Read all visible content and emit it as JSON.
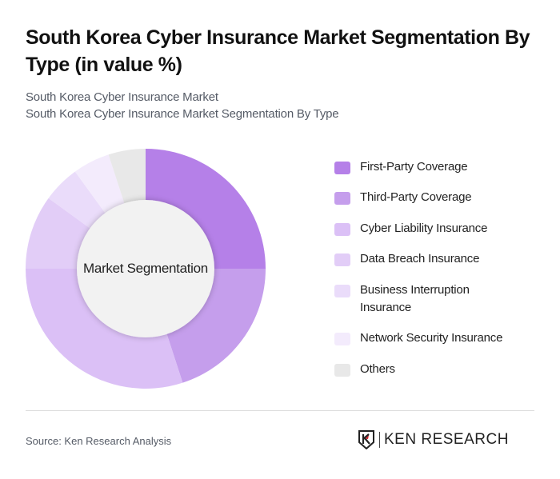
{
  "header": {
    "title": "South Korea Cyber Insurance Market Segmentation By Type (in value %)",
    "subtitle_line1": "South Korea Cyber Insurance Market",
    "subtitle_line2": "South Korea Cyber Insurance Market Segmentation By Type"
  },
  "chart": {
    "center_label": "Market Segmentation"
  },
  "legend": {
    "items": [
      {
        "label": "First-Party Coverage",
        "color": "#b580e8"
      },
      {
        "label": "Third-Party Coverage",
        "color": "#c59eec"
      },
      {
        "label": "Cyber Liability Insurance",
        "color": "#dbc0f6"
      },
      {
        "label": "Data Breach Insurance",
        "color": "#e2cdf7"
      },
      {
        "label": "Business Interruption Insurance",
        "color": "#eadcfa"
      },
      {
        "label": "Network Security Insurance",
        "color": "#f3ebfc"
      },
      {
        "label": "Others",
        "color": "#e8e8e8"
      }
    ]
  },
  "footer": {
    "source": "Source: Ken Research Analysis",
    "logo_text": "KEN RESEARCH"
  },
  "chart_data": {
    "type": "pie",
    "variant": "donut",
    "title": "South Korea Cyber Insurance Market Segmentation By Type (in value %)",
    "center_label": "Market Segmentation",
    "categories": [
      "First-Party Coverage",
      "Third-Party Coverage",
      "Cyber Liability Insurance",
      "Data Breach Insurance",
      "Business Interruption Insurance",
      "Network Security Insurance",
      "Others"
    ],
    "values": [
      25,
      20,
      30,
      10,
      5,
      5,
      5
    ],
    "colors": [
      "#b580e8",
      "#c59eec",
      "#dbc0f6",
      "#e2cdf7",
      "#eadcfa",
      "#f3ebfc",
      "#e8e8e8"
    ],
    "legend_position": "right",
    "data_labels": false
  }
}
